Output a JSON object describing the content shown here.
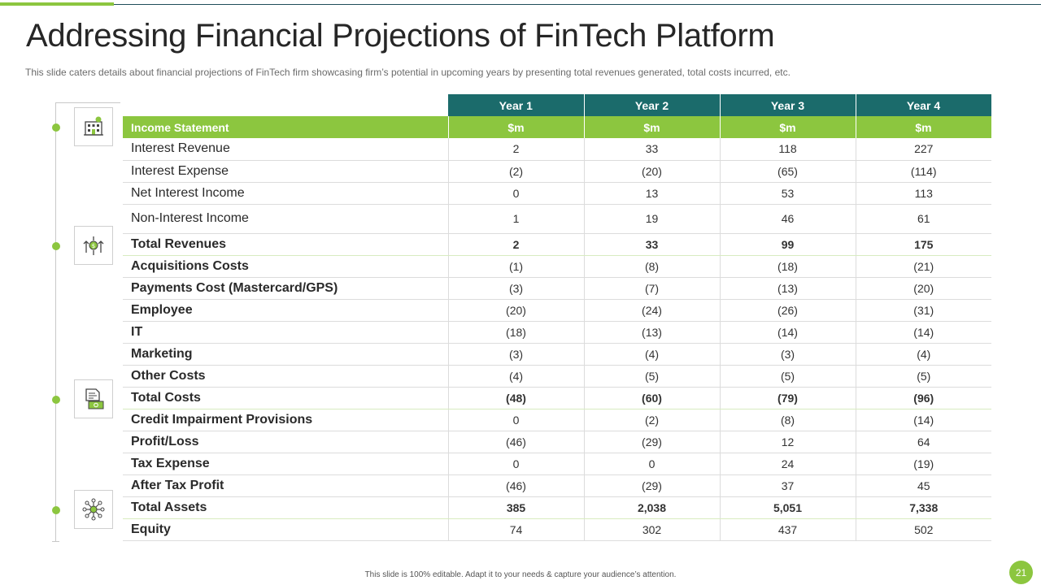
{
  "slide": {
    "title": "Addressing Financial Projections of FinTech Platform",
    "subtitle": "This slide caters details about financial projections of FinTech firm showcasing firm’s potential in upcoming years by presenting total revenues  generated,  total costs incurred,  etc.",
    "footer": "This slide is 100% editable.  Adapt it to your needs & capture your audience’s attention.",
    "page_number": "21"
  },
  "colors": {
    "header_teal": "#1b6b6b",
    "accent_green": "#8cc63f"
  },
  "icons": [
    "building-icon",
    "money-growth-icon",
    "invoice-cash-icon",
    "network-hub-icon"
  ],
  "table": {
    "years": [
      "Year 1",
      "Year 2",
      "Year 3",
      "Year 4"
    ],
    "section": {
      "label": "Income Statement",
      "units": [
        "$m",
        "$m",
        "$m",
        "$m"
      ]
    },
    "rows": [
      {
        "label": "Interest Revenue",
        "values": [
          "2",
          "33",
          "118",
          "227"
        ]
      },
      {
        "label": "Interest   Expense",
        "values": [
          "(2)",
          "(20)",
          "(65)",
          "(114)"
        ]
      },
      {
        "label": "Net Interest Income",
        "values": [
          "0",
          "13",
          "53",
          "113"
        ]
      },
      {
        "label": "Non-Interest  Income",
        "values": [
          "1",
          "19",
          "46",
          "61"
        ]
      },
      {
        "label": "Total Revenues",
        "values": [
          "2",
          "33",
          "99",
          "175"
        ]
      },
      {
        "label": "Acquisitions Costs",
        "values": [
          "(1)",
          "(8)",
          "(18)",
          "(21)"
        ]
      },
      {
        "label": "Payments Cost (Mastercard/GPS)",
        "values": [
          "(3)",
          "(7)",
          "(13)",
          "(20)"
        ]
      },
      {
        "label": "Employee",
        "values": [
          "(20)",
          "(24)",
          "(26)",
          "(31)"
        ]
      },
      {
        "label": "IT",
        "values": [
          "(18)",
          "(13)",
          "(14)",
          "(14)"
        ]
      },
      {
        "label": "Marketing",
        "values": [
          "(3)",
          "(4)",
          "(3)",
          "(4)"
        ]
      },
      {
        "label": "Other Costs",
        "values": [
          "(4)",
          "(5)",
          "(5)",
          "(5)"
        ]
      },
      {
        "label": "Total Costs",
        "values": [
          "(48)",
          "(60)",
          "(79)",
          "(96)"
        ]
      },
      {
        "label": "Credit Impairment Provisions",
        "values": [
          "0",
          "(2)",
          "(8)",
          "(14)"
        ]
      },
      {
        "label": "Profit/Loss",
        "values": [
          "(46)",
          "(29)",
          "12",
          "64"
        ]
      },
      {
        "label": "Tax Expense",
        "values": [
          "0",
          "0",
          "24",
          "(19)"
        ]
      },
      {
        "label": "After Tax Profit",
        "values": [
          "(46)",
          "(29)",
          "37",
          "45"
        ]
      },
      {
        "label": "Total Assets",
        "values": [
          "385",
          "2,038",
          "5,051",
          "7,338"
        ]
      },
      {
        "label": "Equity",
        "values": [
          "74",
          "302",
          "437",
          "502"
        ]
      }
    ]
  }
}
